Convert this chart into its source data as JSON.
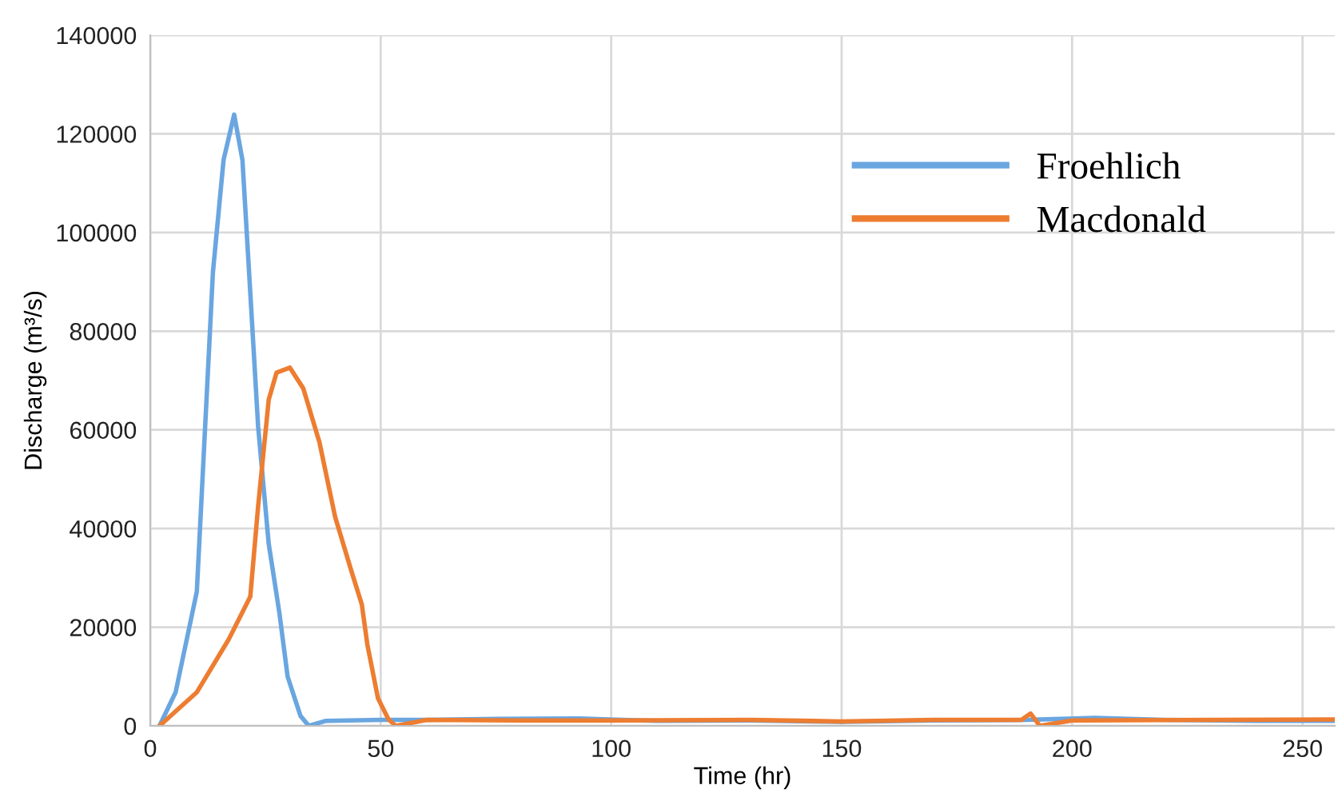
{
  "chart_data": {
    "type": "line",
    "xlabel": "Time (hr)",
    "ylabel": "Discharge (m³/s)",
    "xlim": [
      0,
      257
    ],
    "xticks": [
      0,
      50,
      100,
      150,
      200,
      250
    ],
    "ylim": [
      0,
      140000
    ],
    "yticks": [
      0,
      20000,
      40000,
      60000,
      80000,
      100000,
      120000,
      140000
    ],
    "grid": true,
    "legend": "top right",
    "series": [
      {
        "name": "Froehlich",
        "color": "#6aa6e0",
        "x": [
          2,
          5.5,
          10.1,
          13.6,
          15.9,
          18.2,
          20,
          21.7,
          23.4,
          25.7,
          28,
          29.8,
          32.6,
          34.4,
          38,
          50,
          60,
          75,
          93,
          110,
          130,
          150,
          170,
          190,
          205,
          220,
          240,
          257
        ],
        "values": [
          0,
          6800,
          27200,
          92000,
          114700,
          123900,
          114700,
          87800,
          60700,
          36900,
          23000,
          10000,
          2000,
          0,
          1000,
          1200,
          1200,
          1400,
          1500,
          1000,
          1100,
          800,
          1100,
          1200,
          1600,
          1200,
          1000,
          1000
        ]
      },
      {
        "name": "Macdonald",
        "color": "#ed7d31",
        "x": [
          2,
          10.1,
          17,
          21.7,
          23.4,
          25.7,
          27.4,
          30.3,
          33.2,
          36.7,
          40.1,
          43.6,
          45.9,
          47.1,
          49.4,
          51.7,
          53.3,
          60,
          80,
          100,
          130,
          150,
          170,
          189,
          191,
          193,
          200,
          230,
          257
        ],
        "values": [
          0,
          6800,
          17500,
          26200,
          44500,
          66100,
          71600,
          72600,
          68400,
          57500,
          42400,
          31500,
          24600,
          16500,
          5600,
          1300,
          0,
          1200,
          1100,
          1100,
          1200,
          900,
          1200,
          1200,
          2500,
          0,
          1100,
          1200,
          1300
        ]
      }
    ]
  }
}
